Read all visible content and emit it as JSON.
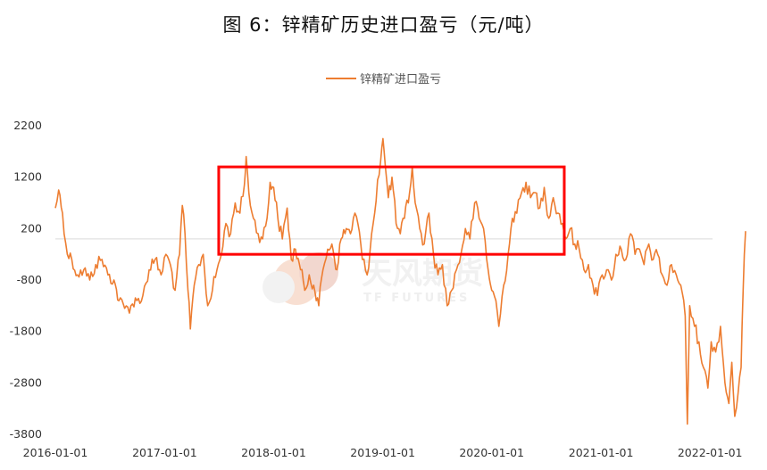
{
  "chart_data": {
    "type": "line",
    "title": "图 6：锌精矿历史进口盈亏（元/吨）",
    "xlabel": "",
    "ylabel": "",
    "y_ticks": [
      2200,
      1200,
      200,
      -800,
      -1800,
      -2800,
      -3800
    ],
    "ylim": [
      -3800,
      2200
    ],
    "x_ticks": [
      "2016-01-01",
      "2017-01-01",
      "2018-01-01",
      "2019-01-01",
      "2020-01-01",
      "2021-01-01",
      "2022-01-01"
    ],
    "xlim": [
      "2016-01-01",
      "2022-05-15"
    ],
    "legend_position": "top-center",
    "grid": false,
    "series": [
      {
        "name": "锌精矿进口盈亏",
        "color": "#ED7D31",
        "points": [
          [
            "2016-01-01",
            600
          ],
          [
            "2016-01-12",
            950
          ],
          [
            "2016-01-25",
            500
          ],
          [
            "2016-02-10",
            -300
          ],
          [
            "2016-02-25",
            -400
          ],
          [
            "2016-03-15",
            -700
          ],
          [
            "2016-04-05",
            -600
          ],
          [
            "2016-04-25",
            -800
          ],
          [
            "2016-05-15",
            -500
          ],
          [
            "2016-06-05",
            -400
          ],
          [
            "2016-06-25",
            -700
          ],
          [
            "2016-07-15",
            -800
          ],
          [
            "2016-08-01",
            -1200
          ],
          [
            "2016-08-20",
            -1350
          ],
          [
            "2016-09-10",
            -1300
          ],
          [
            "2016-09-30",
            -1200
          ],
          [
            "2016-10-20",
            -1100
          ],
          [
            "2016-11-10",
            -600
          ],
          [
            "2016-11-30",
            -400
          ],
          [
            "2016-12-20",
            -700
          ],
          [
            "2017-01-05",
            -300
          ],
          [
            "2017-01-20",
            -500
          ],
          [
            "2017-02-05",
            -1000
          ],
          [
            "2017-02-20",
            -300
          ],
          [
            "2017-03-01",
            650
          ],
          [
            "2017-03-10",
            100
          ],
          [
            "2017-03-20",
            -1000
          ],
          [
            "2017-03-28",
            -1750
          ],
          [
            "2017-04-10",
            -900
          ],
          [
            "2017-04-25",
            -500
          ],
          [
            "2017-05-10",
            -300
          ],
          [
            "2017-05-25",
            -1300
          ],
          [
            "2017-06-10",
            -1000
          ],
          [
            "2017-06-25",
            -600
          ],
          [
            "2017-07-10",
            -300
          ],
          [
            "2017-07-25",
            300
          ],
          [
            "2017-08-10",
            100
          ],
          [
            "2017-08-25",
            700
          ],
          [
            "2017-09-10",
            500
          ],
          [
            "2017-09-25",
            1050
          ],
          [
            "2017-10-01",
            1600
          ],
          [
            "2017-10-10",
            900
          ],
          [
            "2017-10-25",
            400
          ],
          [
            "2017-11-10",
            100
          ],
          [
            "2017-11-25",
            0
          ],
          [
            "2017-12-10",
            400
          ],
          [
            "2017-12-20",
            1100
          ],
          [
            "2018-01-01",
            1000
          ],
          [
            "2018-01-15",
            400
          ],
          [
            "2018-01-30",
            0
          ],
          [
            "2018-02-15",
            600
          ],
          [
            "2018-03-01",
            -400
          ],
          [
            "2018-03-15",
            -200
          ],
          [
            "2018-04-01",
            -600
          ],
          [
            "2018-04-15",
            -1000
          ],
          [
            "2018-04-30",
            -700
          ],
          [
            "2018-05-15",
            -900
          ],
          [
            "2018-06-01",
            -1300
          ],
          [
            "2018-06-15",
            -600
          ],
          [
            "2018-07-01",
            -200
          ],
          [
            "2018-07-15",
            -100
          ],
          [
            "2018-08-01",
            -600
          ],
          [
            "2018-08-15",
            0
          ],
          [
            "2018-09-01",
            200
          ],
          [
            "2018-09-15",
            100
          ],
          [
            "2018-09-30",
            500
          ],
          [
            "2018-10-10",
            300
          ],
          [
            "2018-10-25",
            -400
          ],
          [
            "2018-11-10",
            -700
          ],
          [
            "2018-11-25",
            100
          ],
          [
            "2018-12-05",
            500
          ],
          [
            "2018-12-15",
            1150
          ],
          [
            "2018-12-25",
            1500
          ],
          [
            "2019-01-02",
            1950
          ],
          [
            "2019-01-10",
            1400
          ],
          [
            "2019-01-20",
            800
          ],
          [
            "2019-02-01",
            1200
          ],
          [
            "2019-02-15",
            300
          ],
          [
            "2019-03-01",
            100
          ],
          [
            "2019-03-15",
            400
          ],
          [
            "2019-04-01",
            900
          ],
          [
            "2019-04-10",
            1400
          ],
          [
            "2019-04-20",
            700
          ],
          [
            "2019-05-05",
            200
          ],
          [
            "2019-05-20",
            -100
          ],
          [
            "2019-06-05",
            500
          ],
          [
            "2019-06-20",
            -300
          ],
          [
            "2019-07-05",
            -700
          ],
          [
            "2019-07-20",
            -500
          ],
          [
            "2019-08-05",
            -1300
          ],
          [
            "2019-08-20",
            -1000
          ],
          [
            "2019-09-05",
            -600
          ],
          [
            "2019-09-20",
            -300
          ],
          [
            "2019-10-05",
            200
          ],
          [
            "2019-10-20",
            0
          ],
          [
            "2019-11-05",
            700
          ],
          [
            "2019-11-20",
            400
          ],
          [
            "2019-12-05",
            200
          ],
          [
            "2019-12-20",
            -600
          ],
          [
            "2020-01-01",
            -1000
          ],
          [
            "2020-01-15",
            -1200
          ],
          [
            "2020-01-25",
            -1700
          ],
          [
            "2020-02-10",
            -900
          ],
          [
            "2020-02-25",
            -300
          ],
          [
            "2020-03-10",
            400
          ],
          [
            "2020-03-25",
            500
          ],
          [
            "2020-04-10",
            900
          ],
          [
            "2020-04-25",
            1100
          ],
          [
            "2020-05-10",
            800
          ],
          [
            "2020-05-25",
            900
          ],
          [
            "2020-06-10",
            600
          ],
          [
            "2020-06-25",
            1000
          ],
          [
            "2020-07-10",
            400
          ],
          [
            "2020-07-25",
            800
          ],
          [
            "2020-08-10",
            500
          ],
          [
            "2020-08-25",
            300
          ],
          [
            "2020-09-05",
            0
          ],
          [
            "2020-09-20",
            200
          ],
          [
            "2020-10-05",
            -100
          ],
          [
            "2020-10-20",
            -200
          ],
          [
            "2020-11-05",
            -600
          ],
          [
            "2020-11-20",
            -500
          ],
          [
            "2020-12-05",
            -900
          ],
          [
            "2020-12-20",
            -1100
          ],
          [
            "2021-01-05",
            -700
          ],
          [
            "2021-01-20",
            -600
          ],
          [
            "2021-02-05",
            -800
          ],
          [
            "2021-02-20",
            -300
          ],
          [
            "2021-03-10",
            -200
          ],
          [
            "2021-03-25",
            -400
          ],
          [
            "2021-04-10",
            100
          ],
          [
            "2021-04-25",
            -300
          ],
          [
            "2021-05-10",
            -200
          ],
          [
            "2021-05-25",
            -500
          ],
          [
            "2021-06-10",
            -100
          ],
          [
            "2021-06-25",
            -400
          ],
          [
            "2021-07-10",
            -300
          ],
          [
            "2021-07-25",
            -700
          ],
          [
            "2021-08-10",
            -900
          ],
          [
            "2021-08-25",
            -500
          ],
          [
            "2021-09-10",
            -700
          ],
          [
            "2021-09-25",
            -900
          ],
          [
            "2021-10-10",
            -1500
          ],
          [
            "2021-10-17",
            -3600
          ],
          [
            "2021-10-25",
            -1300
          ],
          [
            "2021-11-10",
            -1700
          ],
          [
            "2021-11-25",
            -2000
          ],
          [
            "2021-12-10",
            -2500
          ],
          [
            "2021-12-25",
            -2900
          ],
          [
            "2022-01-05",
            -2000
          ],
          [
            "2022-01-20",
            -2200
          ],
          [
            "2022-02-05",
            -1700
          ],
          [
            "2022-02-20",
            -2800
          ],
          [
            "2022-03-05",
            -3200
          ],
          [
            "2022-03-15",
            -2400
          ],
          [
            "2022-03-25",
            -3450
          ],
          [
            "2022-04-05",
            -3000
          ],
          [
            "2022-04-15",
            -2500
          ],
          [
            "2022-04-22",
            -1000
          ],
          [
            "2022-04-30",
            150
          ]
        ]
      }
    ]
  },
  "watermark": {
    "main": "天风期货",
    "sub": "TF FUTURES",
    "colors": [
      "#F3C6AE",
      "#E9B7A8",
      "#E8E8E8"
    ]
  },
  "annotation": {
    "type": "highlight-box",
    "from": "2017-07-01",
    "to": "2020-08-31",
    "y_top": 1400,
    "y_bottom": -300,
    "color": "#FF0000"
  }
}
